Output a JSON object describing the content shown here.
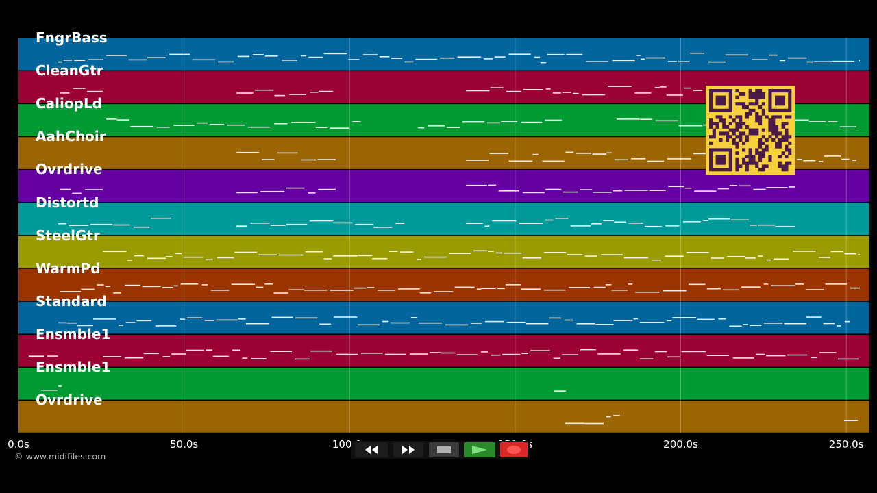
{
  "tracks": [
    {
      "name": "FngrBass",
      "color": "#02659b"
    },
    {
      "name": "CleanGtr",
      "color": "#9a0134"
    },
    {
      "name": "CaliopLd",
      "color": "#019a33"
    },
    {
      "name": "AahChoir",
      "color": "#9a6502"
    },
    {
      "name": "Ovrdrive",
      "color": "#6501a0"
    },
    {
      "name": "Distortd",
      "color": "#019a9a"
    },
    {
      "name": "SteelGtr",
      "color": "#9a9a01"
    },
    {
      "name": "WarmPd",
      "color": "#9a3401"
    },
    {
      "name": "Standard",
      "color": "#02659b"
    },
    {
      "name": "Ensmble1",
      "color": "#9a0134"
    },
    {
      "name": "Ensmble1",
      "color": "#019a33"
    },
    {
      "name": "Ovrdrive",
      "color": "#9a6502"
    }
  ],
  "timeline": {
    "unit": "s",
    "range": [
      0,
      257
    ],
    "ticks": [
      {
        "value": 0,
        "label": "0.0s"
      },
      {
        "value": 50,
        "label": "50.0s"
      },
      {
        "value": 100,
        "label": "100.0s"
      },
      {
        "value": 150,
        "label": "150.0s"
      },
      {
        "value": 200,
        "label": "200.0s"
      },
      {
        "value": 250,
        "label": "250.0s"
      }
    ]
  },
  "copyright": "© www.midifiles.com",
  "controls": {
    "rewind_icon": "rewind-icon",
    "fast_forward_icon": "fast-forward-icon",
    "stop_icon": "stop-icon",
    "play_icon": "play-icon",
    "record_icon": "record-icon",
    "play_color": "#2a8a2a",
    "record_color": "#d82828"
  },
  "overlay": {
    "type": "qr-code",
    "background": "#f7d13c",
    "foreground": "#4a1a4a"
  }
}
